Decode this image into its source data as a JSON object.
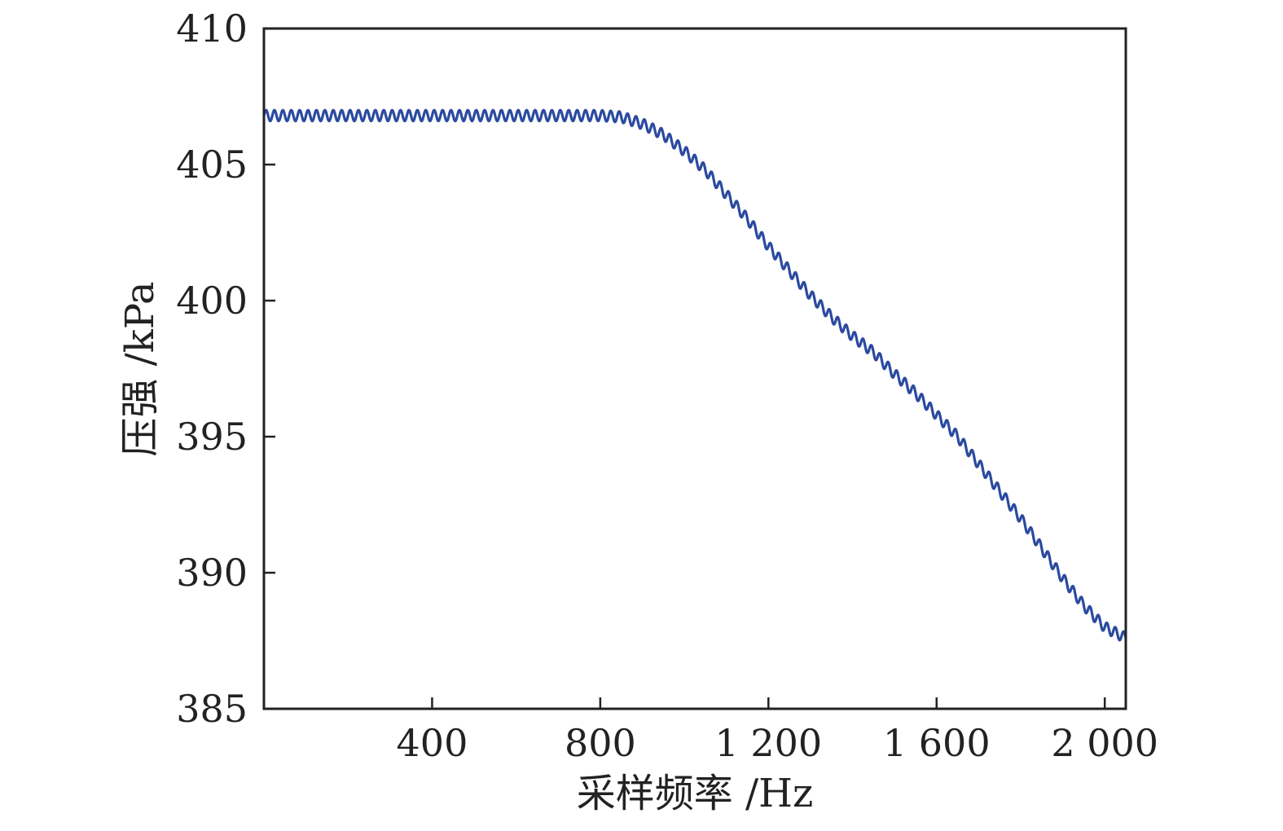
{
  "chart_data": {
    "type": "line",
    "title": "",
    "xlabel": "采样频率 /Hz",
    "ylabel": "压强 /kPa",
    "xlim": [
      0,
      2050
    ],
    "ylim": [
      385,
      410
    ],
    "x_ticks": [
      {
        "value": 400,
        "label": "400"
      },
      {
        "value": 800,
        "label": "800"
      },
      {
        "value": 1200,
        "label": "1 200"
      },
      {
        "value": 1600,
        "label": "1 600"
      },
      {
        "value": 2000,
        "label": "2 000"
      }
    ],
    "y_ticks": [
      {
        "value": 385,
        "label": "385"
      },
      {
        "value": 390,
        "label": "390"
      },
      {
        "value": 395,
        "label": "395"
      },
      {
        "value": 400,
        "label": "400"
      },
      {
        "value": 405,
        "label": "405"
      },
      {
        "value": 410,
        "label": "410"
      }
    ],
    "grid": false,
    "legend": "none",
    "series": [
      {
        "color": "#2b4aa0",
        "oscillation": {
          "amplitude": 0.2,
          "period": 20
        },
        "x": [
          0,
          100,
          200,
          300,
          400,
          500,
          600,
          700,
          800,
          850,
          900,
          950,
          1000,
          1050,
          1100,
          1150,
          1200,
          1250,
          1300,
          1350,
          1400,
          1450,
          1500,
          1550,
          1600,
          1650,
          1700,
          1750,
          1800,
          1850,
          1900,
          1950,
          2000,
          2050
        ],
        "y": [
          406.8,
          406.8,
          406.8,
          406.8,
          406.8,
          406.8,
          406.8,
          406.8,
          406.8,
          406.75,
          406.5,
          406.1,
          405.5,
          404.8,
          403.9,
          403.0,
          402.0,
          401.1,
          400.2,
          399.4,
          398.7,
          398.1,
          397.3,
          396.6,
          395.8,
          395.0,
          394.0,
          393.0,
          392.0,
          390.9,
          389.8,
          388.8,
          388.0,
          387.6
        ]
      }
    ]
  }
}
